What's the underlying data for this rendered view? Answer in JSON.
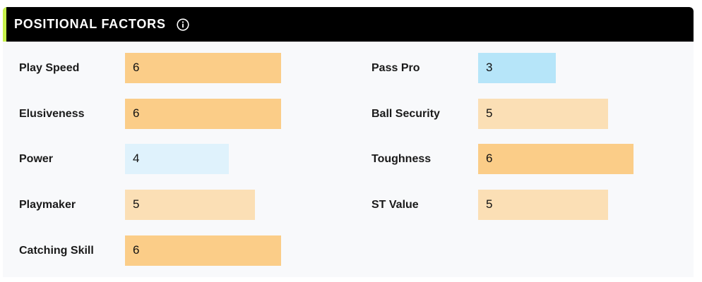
{
  "panel": {
    "title": "POSITIONAL FACTORS",
    "info_icon": "info-circle-icon"
  },
  "colors": {
    "header_bg": "#000000",
    "accent": "#c6f04a",
    "bar_high": "#fbcd88",
    "bar_mid": "#fbdfb5",
    "bar_low": "#dff2fc",
    "bar_lowest": "#b6e5f9"
  },
  "left_factors": [
    {
      "label": "Play Speed",
      "value": "6"
    },
    {
      "label": "Elusiveness",
      "value": "6"
    },
    {
      "label": "Power",
      "value": "4"
    },
    {
      "label": "Playmaker",
      "value": "5"
    },
    {
      "label": "Catching Skill",
      "value": "6"
    }
  ],
  "right_factors": [
    {
      "label": "Pass Pro",
      "value": "3"
    },
    {
      "label": "Ball Security",
      "value": "5"
    },
    {
      "label": "Toughness",
      "value": "6"
    },
    {
      "label": "ST Value",
      "value": "5"
    }
  ]
}
